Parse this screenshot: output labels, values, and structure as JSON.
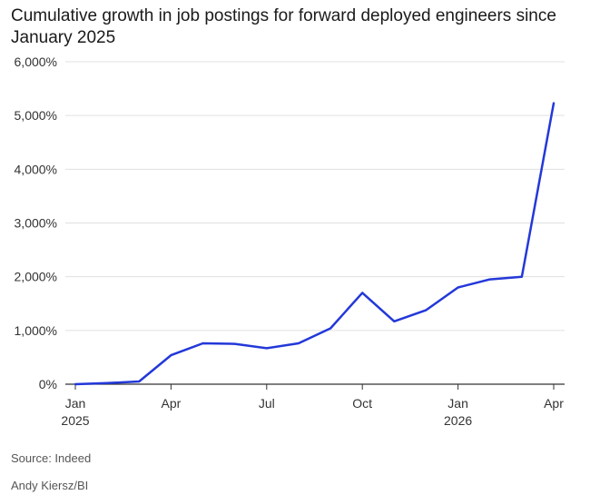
{
  "chart_data": {
    "type": "line",
    "title": "Cumulative growth in job postings for forward deployed engineers since January 2025",
    "x": [
      "2025-01",
      "2025-02",
      "2025-03",
      "2025-04",
      "2025-05",
      "2025-06",
      "2025-07",
      "2025-08",
      "2025-09",
      "2025-10",
      "2025-11",
      "2025-12",
      "2026-01",
      "2026-02",
      "2026-03",
      "2026-04"
    ],
    "x_tick_labels": [
      {
        "month": "Jan",
        "year": "2025"
      },
      {
        "month": "Apr",
        "year": ""
      },
      {
        "month": "Jul",
        "year": ""
      },
      {
        "month": "Oct",
        "year": ""
      },
      {
        "month": "Jan",
        "year": "2026"
      },
      {
        "month": "Apr",
        "year": ""
      }
    ],
    "x_tick_indices": [
      0,
      3,
      6,
      9,
      12,
      15
    ],
    "series": [
      {
        "values": [
          0,
          20,
          50,
          540,
          760,
          750,
          670,
          760,
          1040,
          1700,
          1170,
          1380,
          1800,
          1950,
          2000,
          5230
        ]
      }
    ],
    "y_tick_labels": [
      "0%",
      "1,000%",
      "2,000%",
      "3,000%",
      "4,000%",
      "5,000%",
      "6,000%"
    ],
    "y_ticks": [
      0,
      1000,
      2000,
      3000,
      4000,
      5000,
      6000
    ],
    "ylim": [
      0,
      6000
    ],
    "grid": true,
    "line_color": "#2338d9",
    "grid_color": "#e0e0e0"
  },
  "footer": {
    "source": "Source: Indeed",
    "credit": "Andy Kiersz/BI"
  }
}
